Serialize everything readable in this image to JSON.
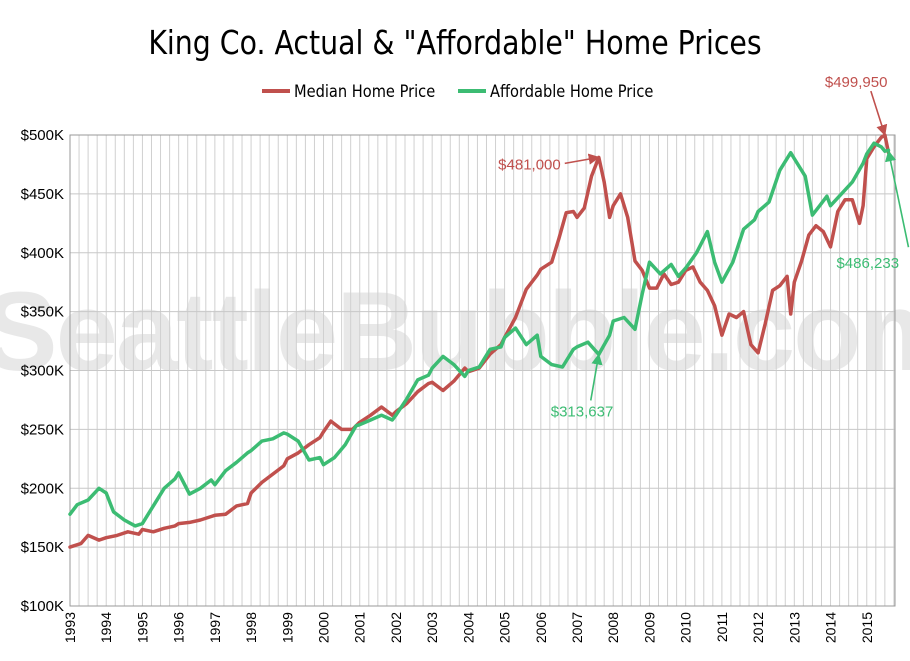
{
  "chart_data": {
    "type": "line",
    "title": "King Co. Actual & \"Affordable\" Home Prices",
    "watermark": "SeattleBubble.com",
    "y_axis": {
      "min": 100000,
      "max": 500000,
      "step": 50000,
      "tick_labels": [
        "$100K",
        "$150K",
        "$200K",
        "$250K",
        "$300K",
        "$350K",
        "$400K",
        "$450K",
        "$500K"
      ]
    },
    "x_axis": {
      "start_year": 1993,
      "end_year": 2015,
      "tick_labels": [
        "1993",
        "1994",
        "1995",
        "1996",
        "1997",
        "1998",
        "1999",
        "2000",
        "2001",
        "2002",
        "2003",
        "2004",
        "2005",
        "2006",
        "2007",
        "2008",
        "2009",
        "2010",
        "2011",
        "2012",
        "2013",
        "2014",
        "2015"
      ]
    },
    "grid": true,
    "legend_position": "top",
    "series": [
      {
        "name": "Median Home Price",
        "color": "#c0504d",
        "points": [
          [
            1993.0,
            150000
          ],
          [
            1993.3,
            153000
          ],
          [
            1993.5,
            160000
          ],
          [
            1993.8,
            156000
          ],
          [
            1994.0,
            158000
          ],
          [
            1994.3,
            160000
          ],
          [
            1994.6,
            163000
          ],
          [
            1994.9,
            161000
          ],
          [
            1995.0,
            165000
          ],
          [
            1995.3,
            163000
          ],
          [
            1995.6,
            166000
          ],
          [
            1995.9,
            168000
          ],
          [
            1996.0,
            170000
          ],
          [
            1996.3,
            171000
          ],
          [
            1996.6,
            173000
          ],
          [
            1996.9,
            176000
          ],
          [
            1997.0,
            177000
          ],
          [
            1997.3,
            178000
          ],
          [
            1997.6,
            185000
          ],
          [
            1997.9,
            187000
          ],
          [
            1998.0,
            196000
          ],
          [
            1998.3,
            205000
          ],
          [
            1998.6,
            212000
          ],
          [
            1998.9,
            219000
          ],
          [
            1999.0,
            225000
          ],
          [
            1999.3,
            230000
          ],
          [
            1999.6,
            237000
          ],
          [
            1999.9,
            243000
          ],
          [
            2000.0,
            248000
          ],
          [
            2000.2,
            257000
          ],
          [
            2000.5,
            250000
          ],
          [
            2000.8,
            250000
          ],
          [
            2001.0,
            256000
          ],
          [
            2001.3,
            262000
          ],
          [
            2001.6,
            269000
          ],
          [
            2001.9,
            262000
          ],
          [
            2002.0,
            265000
          ],
          [
            2002.3,
            272000
          ],
          [
            2002.6,
            282000
          ],
          [
            2002.9,
            289000
          ],
          [
            2003.0,
            290000
          ],
          [
            2003.3,
            283000
          ],
          [
            2003.6,
            291000
          ],
          [
            2003.9,
            302000
          ],
          [
            2004.0,
            299000
          ],
          [
            2004.3,
            302000
          ],
          [
            2004.6,
            314000
          ],
          [
            2004.9,
            322000
          ],
          [
            2005.0,
            328000
          ],
          [
            2005.3,
            345000
          ],
          [
            2005.6,
            369000
          ],
          [
            2005.9,
            381000
          ],
          [
            2006.0,
            386000
          ],
          [
            2006.3,
            392000
          ],
          [
            2006.5,
            412000
          ],
          [
            2006.7,
            434000
          ],
          [
            2006.9,
            435000
          ],
          [
            2007.0,
            430000
          ],
          [
            2007.2,
            438000
          ],
          [
            2007.4,
            465000
          ],
          [
            2007.6,
            481000
          ],
          [
            2007.75,
            460000
          ],
          [
            2007.9,
            430000
          ],
          [
            2008.0,
            440000
          ],
          [
            2008.2,
            450000
          ],
          [
            2008.4,
            430000
          ],
          [
            2008.6,
            393000
          ],
          [
            2008.8,
            385000
          ],
          [
            2009.0,
            370000
          ],
          [
            2009.2,
            370000
          ],
          [
            2009.4,
            382000
          ],
          [
            2009.6,
            373000
          ],
          [
            2009.8,
            375000
          ],
          [
            2010.0,
            385000
          ],
          [
            2010.2,
            388000
          ],
          [
            2010.4,
            375000
          ],
          [
            2010.6,
            368000
          ],
          [
            2010.8,
            355000
          ],
          [
            2011.0,
            330000
          ],
          [
            2011.2,
            348000
          ],
          [
            2011.4,
            345000
          ],
          [
            2011.6,
            350000
          ],
          [
            2011.8,
            322000
          ],
          [
            2012.0,
            315000
          ],
          [
            2012.2,
            340000
          ],
          [
            2012.4,
            368000
          ],
          [
            2012.6,
            372000
          ],
          [
            2012.8,
            380000
          ],
          [
            2012.9,
            348000
          ],
          [
            2013.0,
            375000
          ],
          [
            2013.2,
            393000
          ],
          [
            2013.4,
            415000
          ],
          [
            2013.6,
            423000
          ],
          [
            2013.8,
            418000
          ],
          [
            2014.0,
            405000
          ],
          [
            2014.2,
            435000
          ],
          [
            2014.4,
            445000
          ],
          [
            2014.6,
            445000
          ],
          [
            2014.8,
            425000
          ],
          [
            2014.9,
            440000
          ],
          [
            2015.0,
            480000
          ],
          [
            2015.2,
            490000
          ],
          [
            2015.4,
            498000
          ],
          [
            2015.5,
            499950
          ],
          [
            2015.6,
            485000
          ]
        ]
      },
      {
        "name": "Affordable Home Price",
        "color": "#3cbc73",
        "points": [
          [
            1993.0,
            178000
          ],
          [
            1993.2,
            186000
          ],
          [
            1993.5,
            190000
          ],
          [
            1993.8,
            200000
          ],
          [
            1994.0,
            196000
          ],
          [
            1994.2,
            180000
          ],
          [
            1994.5,
            173000
          ],
          [
            1994.8,
            168000
          ],
          [
            1995.0,
            170000
          ],
          [
            1995.3,
            185000
          ],
          [
            1995.6,
            200000
          ],
          [
            1995.9,
            208000
          ],
          [
            1996.0,
            213000
          ],
          [
            1996.3,
            195000
          ],
          [
            1996.6,
            200000
          ],
          [
            1996.9,
            207000
          ],
          [
            1997.0,
            203000
          ],
          [
            1997.3,
            215000
          ],
          [
            1997.6,
            222000
          ],
          [
            1997.9,
            230000
          ],
          [
            1998.0,
            232000
          ],
          [
            1998.3,
            240000
          ],
          [
            1998.6,
            242000
          ],
          [
            1998.9,
            247000
          ],
          [
            1999.0,
            246000
          ],
          [
            1999.3,
            240000
          ],
          [
            1999.6,
            224000
          ],
          [
            1999.9,
            226000
          ],
          [
            2000.0,
            220000
          ],
          [
            2000.3,
            226000
          ],
          [
            2000.6,
            237000
          ],
          [
            2000.9,
            253000
          ],
          [
            2001.0,
            254000
          ],
          [
            2001.3,
            258000
          ],
          [
            2001.6,
            262000
          ],
          [
            2001.9,
            258000
          ],
          [
            2002.0,
            262000
          ],
          [
            2002.3,
            276000
          ],
          [
            2002.6,
            292000
          ],
          [
            2002.9,
            296000
          ],
          [
            2003.0,
            302000
          ],
          [
            2003.3,
            312000
          ],
          [
            2003.6,
            305000
          ],
          [
            2003.9,
            295000
          ],
          [
            2004.0,
            300000
          ],
          [
            2004.3,
            303000
          ],
          [
            2004.6,
            318000
          ],
          [
            2004.9,
            320000
          ],
          [
            2005.0,
            328000
          ],
          [
            2005.3,
            336000
          ],
          [
            2005.6,
            322000
          ],
          [
            2005.9,
            330000
          ],
          [
            2006.0,
            312000
          ],
          [
            2006.3,
            305000
          ],
          [
            2006.6,
            303000
          ],
          [
            2006.9,
            318000
          ],
          [
            2007.0,
            320000
          ],
          [
            2007.3,
            324000
          ],
          [
            2007.6,
            313637
          ],
          [
            2007.9,
            330000
          ],
          [
            2008.0,
            342000
          ],
          [
            2008.3,
            345000
          ],
          [
            2008.6,
            335000
          ],
          [
            2008.8,
            365000
          ],
          [
            2009.0,
            392000
          ],
          [
            2009.3,
            382000
          ],
          [
            2009.6,
            390000
          ],
          [
            2009.8,
            380000
          ],
          [
            2010.0,
            387000
          ],
          [
            2010.3,
            400000
          ],
          [
            2010.6,
            418000
          ],
          [
            2010.8,
            392000
          ],
          [
            2011.0,
            375000
          ],
          [
            2011.3,
            392000
          ],
          [
            2011.6,
            420000
          ],
          [
            2011.9,
            428000
          ],
          [
            2012.0,
            435000
          ],
          [
            2012.3,
            443000
          ],
          [
            2012.6,
            470000
          ],
          [
            2012.9,
            485000
          ],
          [
            2013.0,
            480000
          ],
          [
            2013.3,
            465000
          ],
          [
            2013.5,
            432000
          ],
          [
            2013.7,
            440000
          ],
          [
            2013.9,
            448000
          ],
          [
            2014.0,
            440000
          ],
          [
            2014.3,
            450000
          ],
          [
            2014.6,
            460000
          ],
          [
            2014.9,
            476000
          ],
          [
            2015.0,
            484000
          ],
          [
            2015.2,
            493000
          ],
          [
            2015.4,
            490000
          ],
          [
            2015.5,
            486233
          ],
          [
            2015.6,
            487000
          ]
        ]
      }
    ],
    "annotations": [
      {
        "text": "$499,950",
        "series": "Median Home Price",
        "x": 2015.5,
        "y": 499950
      },
      {
        "text": "$481,000",
        "series": "Median Home Price",
        "x": 2007.6,
        "y": 481000
      },
      {
        "text": "$486,233",
        "series": "Affordable Home Price",
        "x": 2015.6,
        "y": 486233
      },
      {
        "text": "$313,637",
        "series": "Affordable Home Price",
        "x": 2007.6,
        "y": 313637
      }
    ]
  }
}
